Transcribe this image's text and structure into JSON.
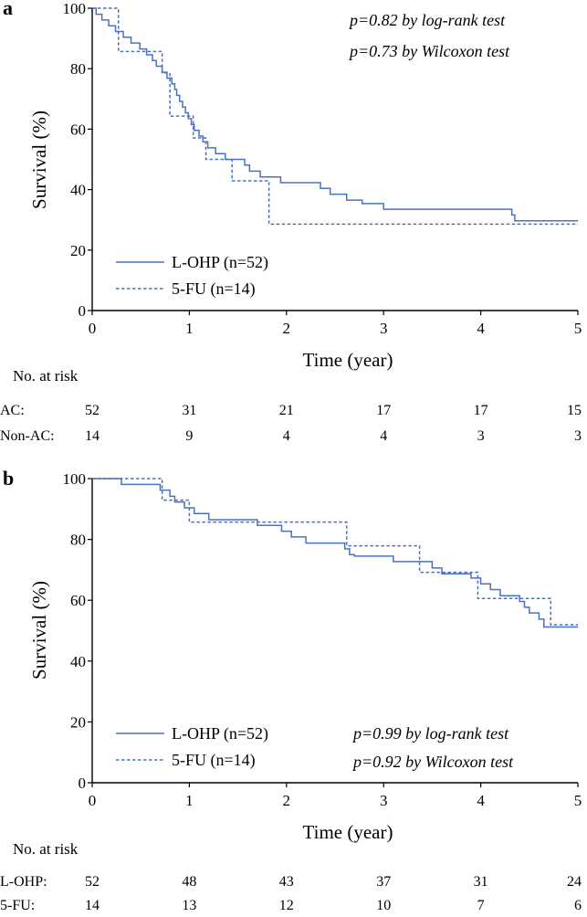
{
  "chart_data": [
    {
      "type": "line",
      "panel": "a",
      "xlabel": "Time (year)",
      "ylabel": "Survival (%)",
      "xlim": [
        0,
        5
      ],
      "ylim": [
        0,
        100
      ],
      "x_ticks": [
        0,
        1,
        2,
        3,
        4,
        5
      ],
      "y_ticks": [
        0,
        20,
        40,
        60,
        80,
        100
      ],
      "annotations": [
        "p=0.82 by log-rank test",
        "p=0.73 by Wilcoxon test"
      ],
      "legend_position": "bottom-left",
      "series": [
        {
          "name": "L-OHP (n=52)",
          "style": "solid",
          "steps": [
            [
              0,
              100
            ],
            [
              0.04,
              98
            ],
            [
              0.1,
              96.1
            ],
            [
              0.17,
              94.2
            ],
            [
              0.24,
              92.3
            ],
            [
              0.32,
              90.4
            ],
            [
              0.4,
              88.5
            ],
            [
              0.49,
              86.5
            ],
            [
              0.56,
              84.6
            ],
            [
              0.62,
              82.7
            ],
            [
              0.66,
              80.8
            ],
            [
              0.72,
              78.8
            ],
            [
              0.77,
              76.9
            ],
            [
              0.82,
              75
            ],
            [
              0.85,
              73.1
            ],
            [
              0.87,
              71.2
            ],
            [
              0.9,
              69.2
            ],
            [
              0.93,
              67.3
            ],
            [
              0.96,
              65.4
            ],
            [
              0.99,
              63.5
            ],
            [
              1.02,
              61.5
            ],
            [
              1.05,
              59.6
            ],
            [
              1.1,
              57.7
            ],
            [
              1.14,
              55.8
            ],
            [
              1.19,
              53.8
            ],
            [
              1.27,
              51.9
            ],
            [
              1.37,
              50
            ],
            [
              1.57,
              48.1
            ],
            [
              1.62,
              46.1
            ],
            [
              1.73,
              44.2
            ],
            [
              1.94,
              42.3
            ],
            [
              2.35,
              40.4
            ],
            [
              2.45,
              38.5
            ],
            [
              2.62,
              36.5
            ],
            [
              2.78,
              35.4
            ],
            [
              3.0,
              33.5
            ],
            [
              4.32,
              31.6
            ],
            [
              4.35,
              29.7
            ],
            [
              5.0,
              29.7
            ]
          ]
        },
        {
          "name": "5-FU (n=14)",
          "style": "dashed",
          "steps": [
            [
              0,
              100
            ],
            [
              0.26,
              100
            ],
            [
              0.27,
              85.7
            ],
            [
              0.7,
              85.7
            ],
            [
              0.72,
              78.6
            ],
            [
              0.78,
              78.6
            ],
            [
              0.8,
              64.3
            ],
            [
              1.02,
              64.3
            ],
            [
              1.04,
              57.1
            ],
            [
              1.15,
              57.1
            ],
            [
              1.17,
              50
            ],
            [
              1.42,
              50
            ],
            [
              1.44,
              42.9
            ],
            [
              1.8,
              42.9
            ],
            [
              1.82,
              28.6
            ],
            [
              5.0,
              28.6
            ]
          ]
        }
      ],
      "at_risk": {
        "heading": "No. at risk",
        "time_points": [
          0,
          1,
          2,
          3,
          4,
          5
        ],
        "rows": [
          {
            "label": "AC:",
            "values": [
              52,
              31,
              21,
              17,
              17,
              15
            ]
          },
          {
            "label": "Non-AC:",
            "values": [
              14,
              9,
              4,
              4,
              3,
              3
            ]
          }
        ]
      }
    },
    {
      "type": "line",
      "panel": "b",
      "xlabel": "Time (year)",
      "ylabel": "Survival (%)",
      "xlim": [
        0,
        5
      ],
      "ylim": [
        0,
        100
      ],
      "x_ticks": [
        0,
        1,
        2,
        3,
        4,
        5
      ],
      "y_ticks": [
        0,
        20,
        40,
        60,
        80,
        100
      ],
      "annotations": [
        "p=0.99 by log-rank test",
        "p=0.92 by Wilcoxon test"
      ],
      "legend_position": "bottom-left",
      "series": [
        {
          "name": "L-OHP (n=52)",
          "style": "solid",
          "steps": [
            [
              0,
              100
            ],
            [
              0.3,
              98.1
            ],
            [
              0.7,
              96.2
            ],
            [
              0.8,
              94.2
            ],
            [
              0.85,
              92.3
            ],
            [
              0.95,
              90.4
            ],
            [
              1.05,
              88.5
            ],
            [
              1.2,
              86.5
            ],
            [
              1.7,
              84.6
            ],
            [
              1.95,
              82.7
            ],
            [
              2.05,
              80.8
            ],
            [
              2.2,
              78.8
            ],
            [
              2.6,
              76.9
            ],
            [
              2.65,
              75
            ],
            [
              2.7,
              74.5
            ],
            [
              3.1,
              72.7
            ],
            [
              3.5,
              70.6
            ],
            [
              3.6,
              68.7
            ],
            [
              3.9,
              67.3
            ],
            [
              4.0,
              65.4
            ],
            [
              4.1,
              63.5
            ],
            [
              4.2,
              61.5
            ],
            [
              4.4,
              59.6
            ],
            [
              4.45,
              57.7
            ],
            [
              4.5,
              55.8
            ],
            [
              4.6,
              53.8
            ],
            [
              4.65,
              51.2
            ],
            [
              5.0,
              51.2
            ]
          ]
        },
        {
          "name": "5-FU (n=14)",
          "style": "dashed",
          "steps": [
            [
              0,
              100
            ],
            [
              0.7,
              100
            ],
            [
              0.72,
              92.9
            ],
            [
              0.98,
              92.9
            ],
            [
              1.0,
              85.7
            ],
            [
              2.6,
              85.7
            ],
            [
              2.62,
              77.9
            ],
            [
              3.35,
              77.9
            ],
            [
              3.37,
              69.2
            ],
            [
              3.95,
              69.2
            ],
            [
              3.97,
              60.6
            ],
            [
              4.7,
              60.6
            ],
            [
              4.72,
              51.9
            ],
            [
              5.0,
              51.9
            ]
          ]
        }
      ],
      "at_risk": {
        "heading": "No. at risk",
        "time_points": [
          0,
          1,
          2,
          3,
          4,
          5
        ],
        "rows": [
          {
            "label": "L-OHP:",
            "values": [
              52,
              48,
              43,
              37,
              31,
              24
            ]
          },
          {
            "label": "5-FU:",
            "values": [
              14,
              13,
              12,
              10,
              7,
              6
            ]
          }
        ]
      }
    }
  ]
}
